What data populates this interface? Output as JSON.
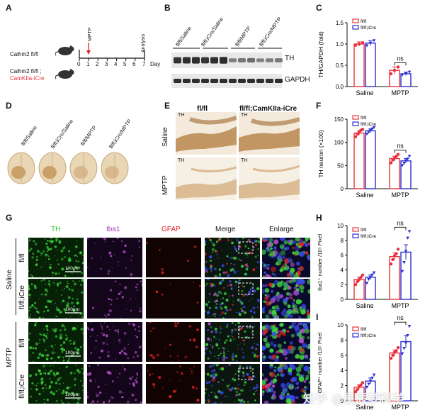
{
  "panels": {
    "A": "A",
    "B": "B",
    "C": "C",
    "D": "D",
    "E": "E",
    "F": "F",
    "G": "G",
    "H": "H",
    "I": "I"
  },
  "panelA": {
    "mouse1": "Calhm2 fl/fl",
    "mouse2_line1": "Calhm2 fl/fl ;",
    "mouse2_line2": "CamKIIa-iCre",
    "mptp": "MPTP",
    "analysis": "Analysis",
    "days": [
      "0",
      "1",
      "2",
      "3",
      "4",
      "5",
      "6",
      "7"
    ],
    "day_unit": "Day"
  },
  "panelB": {
    "lanes": [
      "fl/fl/Saline",
      "fl/fl;iCre/Saline",
      "fl/fl/MPTP",
      "fl/fl;iCre/MPTP"
    ],
    "bands": [
      "TH",
      "GAPDH"
    ]
  },
  "panelD": {
    "labels": [
      "fl/fl/Saline",
      "fl/fl;iCre/Saline",
      "fl/fl/MPTP",
      "fl/fl;iCre/MPTP"
    ]
  },
  "panelE": {
    "col1": "fl/fl",
    "col2": "fl/fl;CamKIIa-iCre",
    "row1": "Saline",
    "row2": "MPTP",
    "th": "TH"
  },
  "panelG": {
    "cols": [
      "TH",
      "Iba1",
      "GFAP",
      "Merge",
      "Enlarge"
    ],
    "group1": "Saline",
    "group2": "MPTP",
    "rows": [
      "fl/fl",
      "fl/fl;iCre",
      "fl/fl",
      "fl/fl;iCre"
    ],
    "scale": "100μm"
  },
  "colors": {
    "flfl": "#e8333c",
    "icre": "#2a2fd1",
    "th": "#2fbf2f",
    "iba1": "#a040b0",
    "gfap": "#e02020"
  },
  "watermark": "知乎 @星辰梦科学",
  "chart_data": [
    {
      "id": "C",
      "type": "bar",
      "ylabel": "TH/GAPDH (fold)",
      "categories": [
        "Saline",
        "MPTP"
      ],
      "series": [
        {
          "name": "fl/fl",
          "values": [
            1.0,
            0.38
          ],
          "errors": [
            0.05,
            0.08
          ],
          "points": [
            [
              0.97,
              1.0,
              1.03
            ],
            [
              0.3,
              0.38,
              0.46
            ]
          ]
        },
        {
          "name": "fl/fl;iCre",
          "values": [
            1.02,
            0.3
          ],
          "errors": [
            0.06,
            0.04
          ],
          "points": [
            [
              0.96,
              1.02,
              1.08
            ],
            [
              0.27,
              0.3,
              0.34
            ]
          ]
        }
      ],
      "ylim": [
        0,
        1.5
      ],
      "yticks": [
        "0.0",
        "0.5",
        "1.0",
        "1.5"
      ],
      "annotation": "ns"
    },
    {
      "id": "F",
      "type": "bar",
      "ylabel": "TH neuron (×100)",
      "categories": [
        "Saline",
        "MPTP"
      ],
      "series": [
        {
          "name": "fl/fl",
          "values": [
            120,
            65
          ],
          "errors": [
            5,
            5
          ],
          "points": [
            [
              112,
              118,
              122,
              126,
              128
            ],
            [
              56,
              62,
              66,
              70,
              74
            ]
          ]
        },
        {
          "name": "fl/fl;iCre",
          "values": [
            125,
            60
          ],
          "errors": [
            4,
            5
          ],
          "points": [
            [
              118,
              122,
              126,
              129,
              132
            ],
            [
              50,
              55,
              60,
              64,
              70
            ]
          ]
        }
      ],
      "ylim": [
        0,
        150
      ],
      "yticks": [
        "0",
        "50",
        "100",
        "150"
      ],
      "annotation": "ns"
    },
    {
      "id": "H",
      "type": "bar",
      "ylabel": "Iba1⁺ number /10⁵ Pixel",
      "categories": [
        "Saline",
        "MPTP"
      ],
      "series": [
        {
          "name": "fl/fl",
          "values": [
            2.7,
            5.8
          ],
          "errors": [
            0.3,
            0.5
          ],
          "points": [
            [
              2.0,
              2.4,
              2.7,
              3.0,
              3.3
            ],
            [
              4.8,
              5.4,
              5.9,
              6.2,
              6.8
            ]
          ]
        },
        {
          "name": "fl/fl;iCre",
          "values": [
            3.0,
            6.4
          ],
          "errors": [
            0.3,
            1.0
          ],
          "points": [
            [
              2.2,
              2.7,
              3.0,
              3.3,
              3.6
            ],
            [
              3.8,
              5.0,
              6.5,
              8.3,
              9.2
            ]
          ]
        }
      ],
      "ylim": [
        0,
        10
      ],
      "yticks": [
        "0",
        "2",
        "4",
        "6",
        "8",
        "10"
      ],
      "annotation": "ns"
    },
    {
      "id": "I",
      "type": "bar",
      "ylabel": "GFAP⁺ number /10⁵ Pixel",
      "categories": [
        "Saline",
        "MPTP"
      ],
      "series": [
        {
          "name": "fl/fl",
          "values": [
            1.8,
            6.3
          ],
          "errors": [
            0.3,
            0.4
          ],
          "points": [
            [
              1.2,
              1.5,
              1.9,
              2.1,
              2.4
            ],
            [
              5.6,
              6.0,
              6.4,
              6.6,
              7.0
            ]
          ]
        },
        {
          "name": "fl/fl;iCre",
          "values": [
            2.6,
            7.8
          ],
          "errors": [
            0.4,
            0.8
          ],
          "points": [
            [
              1.8,
              2.2,
              2.6,
              3.0,
              3.4
            ],
            [
              6.2,
              6.9,
              7.6,
              8.6,
              9.8
            ]
          ]
        }
      ],
      "ylim": [
        0,
        10
      ],
      "yticks": [
        "0",
        "2",
        "4",
        "6",
        "8",
        "10"
      ],
      "annotation": "ns"
    }
  ]
}
